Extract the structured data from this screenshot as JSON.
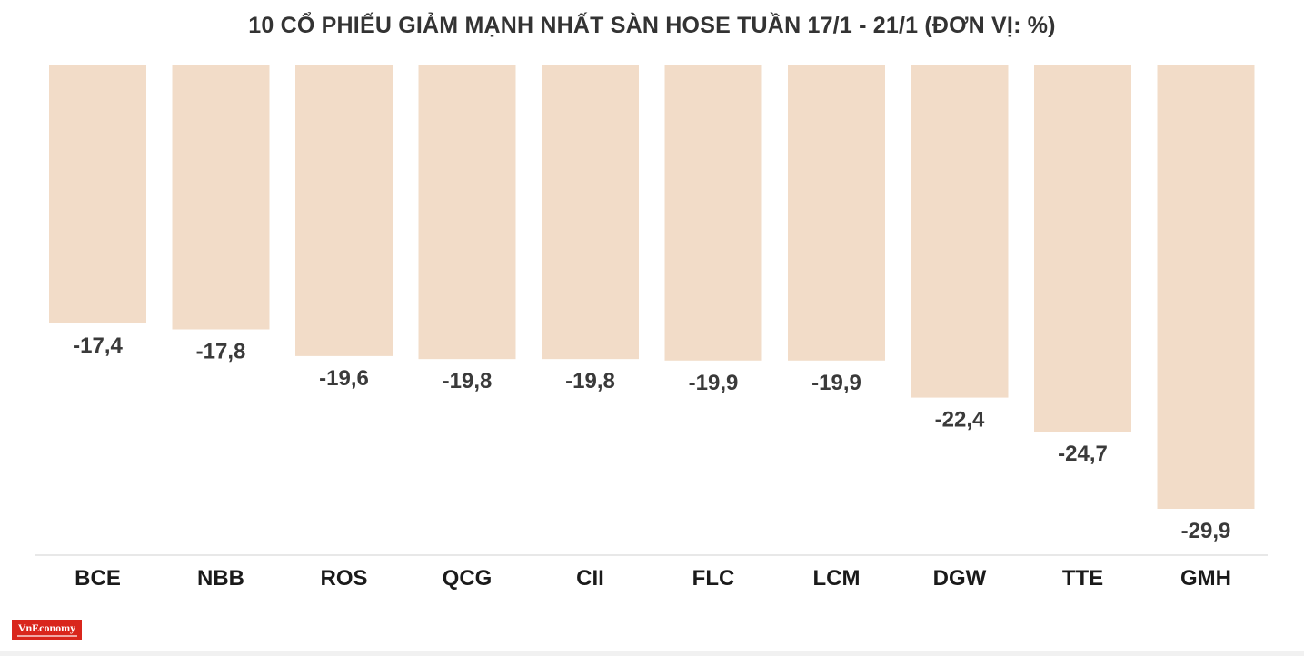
{
  "brand": {
    "logo_text": "VnEconomy"
  },
  "colors": {
    "bar": "#f2dcc8",
    "label": "#3a3a3a",
    "category": "#1a1a1a",
    "axis": "#e0e0e0"
  },
  "chart_data": {
    "type": "bar",
    "title": "10 CỔ PHIẾU GIẢM MẠNH NHẤT SÀN HOSE TUẦN 17/1 - 21/1 (ĐƠN VỊ: %)",
    "xlabel": "",
    "ylabel": "",
    "categories": [
      "BCE",
      "NBB",
      "ROS",
      "QCG",
      "CII",
      "FLC",
      "LCM",
      "DGW",
      "TTE",
      "GMH"
    ],
    "values": [
      -17.4,
      -17.8,
      -19.6,
      -19.8,
      -19.8,
      -19.9,
      -19.9,
      -22.4,
      -24.7,
      -29.9
    ],
    "value_labels": [
      "-17,4",
      "-17,8",
      "-19,6",
      "-19,8",
      "-19,8",
      "-19,9",
      "-19,9",
      "-22,4",
      "-24,7",
      "-29,9"
    ],
    "ylim": [
      -29.9,
      0
    ],
    "grid": false,
    "legend": "none"
  }
}
